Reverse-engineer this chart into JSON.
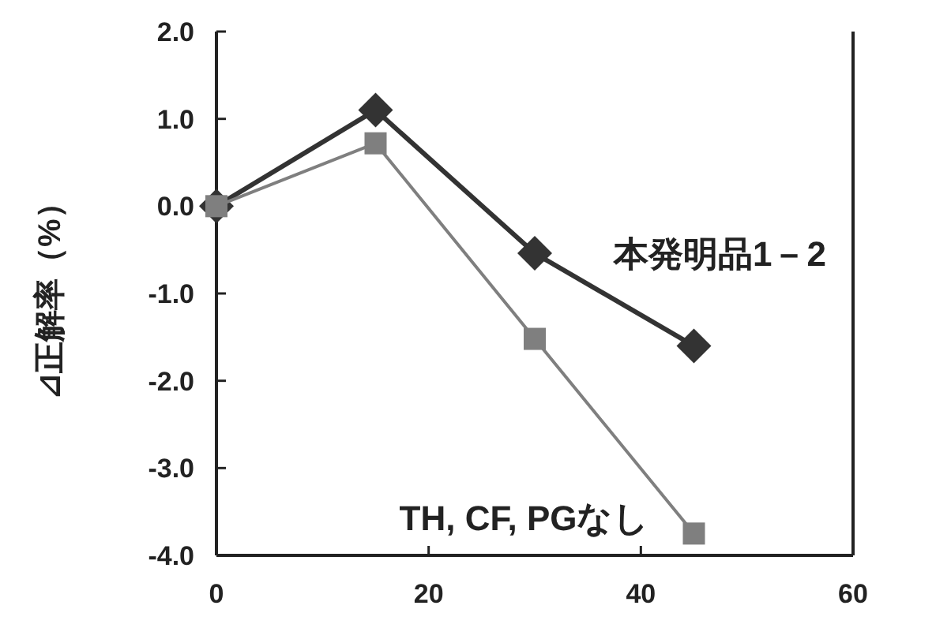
{
  "chart_data": {
    "type": "line",
    "ylabel": "⊿正解率（%）",
    "x": [
      0,
      15,
      30,
      45
    ],
    "series": [
      {
        "name": "本発明品1－2",
        "color": "#333333",
        "marker": "diamond",
        "values": [
          0.0,
          1.1,
          -0.54,
          -1.6
        ]
      },
      {
        "name": "TH, CF, PGなし",
        "color": "#7f7f7f",
        "marker": "square",
        "values": [
          0.0,
          0.72,
          -1.52,
          -3.75
        ]
      }
    ],
    "xlim": [
      0,
      60
    ],
    "xticks": [
      0,
      20,
      40,
      60
    ],
    "ylim": [
      -4,
      2
    ],
    "yticks": [
      {
        "value": 2,
        "label": "2.0"
      },
      {
        "value": 1,
        "label": "1.0"
      },
      {
        "value": 0,
        "label": "0.0"
      },
      {
        "value": -1,
        "label": "-1.0"
      },
      {
        "value": -2,
        "label": "-2.0"
      },
      {
        "value": -3,
        "label": "-3.0"
      },
      {
        "value": -4,
        "label": "-4.0"
      }
    ],
    "grid": false,
    "line_style": "solid"
  }
}
